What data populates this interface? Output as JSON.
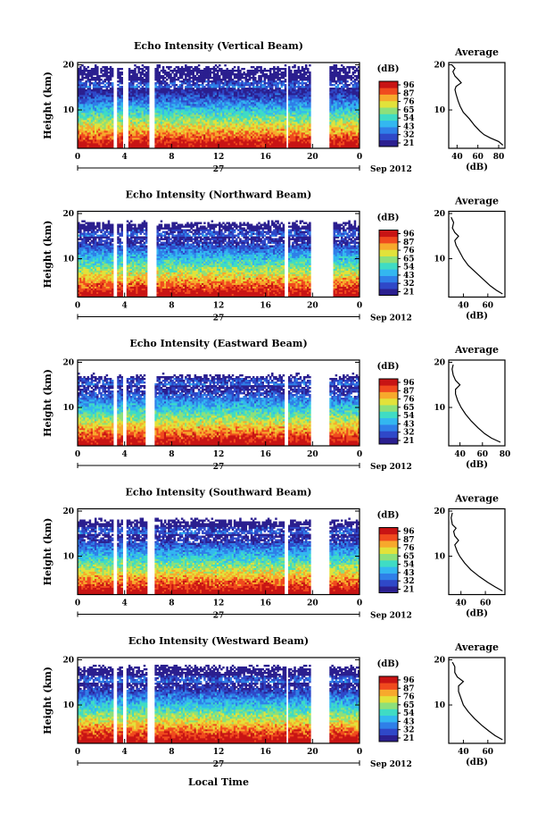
{
  "figure": {
    "xlabel": "Local Time",
    "day_label": "27",
    "month_label": "Sep 2012",
    "colorbar_unit": "(dB)",
    "average_title": "Average",
    "average_xlabel": "(dB)"
  },
  "chart_data": [
    {
      "type": "heatmap",
      "title": "Echo Intensity (Vertical Beam)",
      "ylabel": "Height (km)",
      "x_ticks": [
        "0",
        "4",
        "8",
        "12",
        "16",
        "20",
        "0"
      ],
      "y_ticks": [
        "10",
        "20"
      ],
      "xlim": [
        0,
        24
      ],
      "ylim": [
        1.5,
        20.5
      ],
      "colorbar_ticks": [
        "96",
        "87",
        "76",
        "65",
        "54",
        "43",
        "32",
        "21"
      ],
      "gaps": [
        [
          3.0,
          3.4
        ],
        [
          3.9,
          4.3
        ],
        [
          6.1,
          6.6
        ],
        [
          17.7,
          18.0
        ],
        [
          19.8,
          21.5
        ]
      ],
      "top_km": 19.5,
      "average_profile": {
        "xticks": [
          "40",
          "60",
          "80"
        ],
        "xlim": [
          32,
          86
        ],
        "points": [
          [
            84,
            2.2
          ],
          [
            80,
            3.0
          ],
          [
            72,
            3.8
          ],
          [
            66,
            4.5
          ],
          [
            62,
            5.3
          ],
          [
            57,
            6.5
          ],
          [
            52,
            8.0
          ],
          [
            46,
            9.5
          ],
          [
            43,
            10.8
          ],
          [
            41,
            12.0
          ],
          [
            39,
            13.5
          ],
          [
            38,
            14.5
          ],
          [
            39,
            15.2
          ],
          [
            44,
            16.0
          ],
          [
            41,
            16.8
          ],
          [
            38,
            17.5
          ],
          [
            36,
            18.5
          ],
          [
            38,
            19.2
          ],
          [
            35,
            20
          ]
        ]
      }
    },
    {
      "type": "heatmap",
      "title": "Echo Intensity (Northward Beam)",
      "ylabel": "Height (km)",
      "x_ticks": [
        "0",
        "4",
        "8",
        "12",
        "16",
        "20",
        "0"
      ],
      "y_ticks": [
        "10",
        "20"
      ],
      "xlim": [
        0,
        24
      ],
      "ylim": [
        1.5,
        20.5
      ],
      "colorbar_ticks": [
        "96",
        "87",
        "76",
        "65",
        "54",
        "43",
        "32",
        "21"
      ],
      "gaps": [
        [
          3.0,
          3.3
        ],
        [
          3.9,
          4.2
        ],
        [
          6.0,
          6.8
        ],
        [
          17.6,
          18.0
        ],
        [
          19.9,
          21.7
        ]
      ],
      "top_km": 18.0,
      "average_profile": {
        "xticks": [
          "40",
          "60"
        ],
        "xlim": [
          28,
          74
        ],
        "points": [
          [
            72,
            2.2
          ],
          [
            67,
            3.0
          ],
          [
            62,
            4.0
          ],
          [
            56,
            5.5
          ],
          [
            50,
            7.0
          ],
          [
            44,
            8.5
          ],
          [
            40,
            10.0
          ],
          [
            37,
            11.5
          ],
          [
            34,
            13.0
          ],
          [
            33,
            14.0
          ],
          [
            36,
            15.0
          ],
          [
            33,
            15.8
          ],
          [
            31,
            16.8
          ],
          [
            32,
            18.0
          ],
          [
            30,
            19.2
          ]
        ]
      }
    },
    {
      "type": "heatmap",
      "title": "Echo Intensity (Eastward Beam)",
      "ylabel": "Height (km)",
      "x_ticks": [
        "0",
        "4",
        "8",
        "12",
        "16",
        "20",
        "0"
      ],
      "y_ticks": [
        "10",
        "20"
      ],
      "xlim": [
        0,
        24
      ],
      "ylim": [
        1.5,
        20.5
      ],
      "colorbar_ticks": [
        "96",
        "87",
        "76",
        "65",
        "54",
        "43",
        "32",
        "21"
      ],
      "gaps": [
        [
          3.0,
          3.3
        ],
        [
          3.9,
          4.2
        ],
        [
          5.8,
          6.6
        ],
        [
          17.6,
          17.9
        ],
        [
          19.9,
          21.5
        ]
      ],
      "top_km": 17.0,
      "average_profile": {
        "xticks": [
          "40",
          "60",
          "80"
        ],
        "xlim": [
          30,
          80
        ],
        "points": [
          [
            76,
            2.3
          ],
          [
            68,
            3.2
          ],
          [
            62,
            4.2
          ],
          [
            56,
            5.5
          ],
          [
            50,
            7.0
          ],
          [
            45,
            8.5
          ],
          [
            41,
            10.0
          ],
          [
            38,
            11.5
          ],
          [
            36,
            13.0
          ],
          [
            36,
            14.0
          ],
          [
            40,
            15.0
          ],
          [
            36,
            16.0
          ],
          [
            34,
            17.2
          ],
          [
            33,
            18.5
          ],
          [
            34,
            19.5
          ]
        ]
      }
    },
    {
      "type": "heatmap",
      "title": "Echo Intensity (Southward Beam)",
      "ylabel": "Height (km)",
      "x_ticks": [
        "0",
        "4",
        "8",
        "12",
        "16",
        "20",
        "0"
      ],
      "y_ticks": [
        "10",
        "20"
      ],
      "xlim": [
        0,
        24
      ],
      "ylim": [
        1.5,
        20.5
      ],
      "colorbar_ticks": [
        "96",
        "87",
        "76",
        "65",
        "54",
        "43",
        "32",
        "21"
      ],
      "gaps": [
        [
          3.0,
          3.3
        ],
        [
          3.9,
          4.2
        ],
        [
          5.9,
          6.6
        ],
        [
          17.6,
          17.9
        ],
        [
          19.8,
          21.4
        ]
      ],
      "top_km": 18.0,
      "average_profile": {
        "xticks": [
          "40",
          "60"
        ],
        "xlim": [
          30,
          76
        ],
        "points": [
          [
            74,
            2.3
          ],
          [
            68,
            3.2
          ],
          [
            62,
            4.2
          ],
          [
            55,
            5.5
          ],
          [
            48,
            7.0
          ],
          [
            43,
            8.5
          ],
          [
            39,
            10.0
          ],
          [
            37,
            11.0
          ],
          [
            35,
            12.5
          ],
          [
            38,
            13.5
          ],
          [
            35,
            14.5
          ],
          [
            34,
            15.5
          ],
          [
            36,
            16.2
          ],
          [
            33,
            17.0
          ],
          [
            32,
            18.5
          ],
          [
            33,
            19.6
          ]
        ]
      }
    },
    {
      "type": "heatmap",
      "title": "Echo Intensity (Westward Beam)",
      "ylabel": "Height (km)",
      "x_ticks": [
        "0",
        "4",
        "8",
        "12",
        "16",
        "20",
        "0"
      ],
      "y_ticks": [
        "10",
        "20"
      ],
      "xlim": [
        0,
        24
      ],
      "ylim": [
        1.5,
        20.5
      ],
      "colorbar_ticks": [
        "96",
        "87",
        "76",
        "65",
        "54",
        "43",
        "32",
        "21"
      ],
      "gaps": [
        [
          3.0,
          3.3
        ],
        [
          3.9,
          4.2
        ],
        [
          5.9,
          6.5
        ],
        [
          17.7,
          18.0
        ],
        [
          19.8,
          21.5
        ]
      ],
      "top_km": 18.5,
      "average_profile": {
        "xticks": [
          "40",
          "60"
        ],
        "xlim": [
          28,
          74
        ],
        "points": [
          [
            72,
            2.3
          ],
          [
            66,
            3.2
          ],
          [
            61,
            4.2
          ],
          [
            55,
            5.5
          ],
          [
            49,
            7.0
          ],
          [
            44,
            8.5
          ],
          [
            40,
            10.0
          ],
          [
            38,
            11.5
          ],
          [
            36,
            13.0
          ],
          [
            36,
            14.2
          ],
          [
            40,
            15.2
          ],
          [
            35,
            16.2
          ],
          [
            33,
            17.2
          ],
          [
            33,
            18.5
          ],
          [
            31,
            19.5
          ]
        ]
      }
    }
  ]
}
